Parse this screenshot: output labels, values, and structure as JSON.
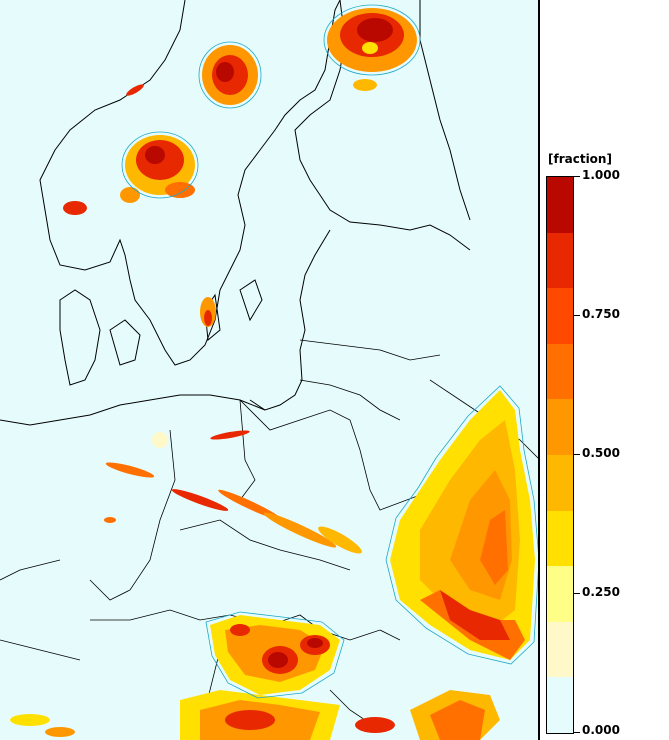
{
  "legend": {
    "title": "[fraction]",
    "colors": [
      "#e6fcfc",
      "#fff8c8",
      "#ffff88",
      "#ffe000",
      "#ffb800",
      "#ff9800",
      "#ff7000",
      "#ff4800",
      "#e82800",
      "#b80800"
    ],
    "ticks": [
      "1.000",
      "0.750",
      "0.500",
      "0.250",
      "0.000"
    ]
  },
  "map": {
    "background": "#e6fcfc",
    "outline_color": "#000000",
    "contour_color": "#20a8c8"
  }
}
